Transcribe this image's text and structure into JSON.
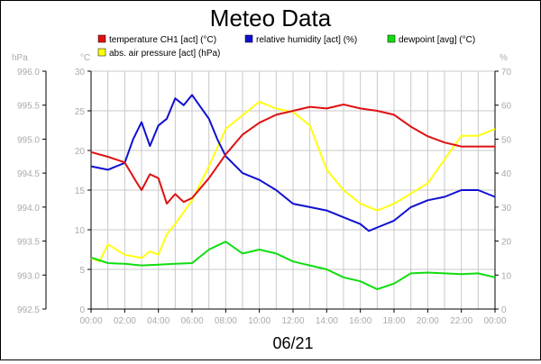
{
  "chart_data": {
    "type": "line",
    "title": "Meteo Data",
    "xlabel": "06/21",
    "x_ticks": [
      "00:00",
      "02:00",
      "04:00",
      "06:00",
      "08:00",
      "10:00",
      "12:00",
      "14:00",
      "16:00",
      "18:00",
      "20:00",
      "22:00",
      "00:00"
    ],
    "x_range_hours": [
      0,
      24
    ],
    "axes": {
      "hpa": {
        "unit": "hPa",
        "range": [
          992.5,
          996.0
        ],
        "ticks": [
          "992.5",
          "993.0",
          "993.5",
          "994.0",
          "994.5",
          "995.0",
          "995.5",
          "996.0"
        ]
      },
      "celsius": {
        "unit": "°C",
        "range": [
          0,
          30
        ],
        "ticks": [
          "0",
          "5",
          "10",
          "15",
          "20",
          "25",
          "30"
        ]
      },
      "percent": {
        "unit": "%",
        "range": [
          0,
          70
        ],
        "ticks": [
          "0",
          "10",
          "20",
          "30",
          "40",
          "50",
          "60",
          "70"
        ]
      }
    },
    "grid": true,
    "legend_position": "top",
    "series": [
      {
        "name": "temperature CH1 [act] (°C)",
        "axis": "celsius",
        "color": "#e01010",
        "x": [
          0,
          1,
          2,
          2.7,
          3,
          3.5,
          4,
          4.5,
          5,
          5.5,
          6,
          7,
          8,
          9,
          10,
          11,
          12,
          13,
          14,
          15,
          16,
          17,
          18,
          19,
          20,
          21,
          22,
          23,
          24
        ],
        "y": [
          19.8,
          19.2,
          18.5,
          16.0,
          15.0,
          17.0,
          16.5,
          13.3,
          14.5,
          13.5,
          14.0,
          16.5,
          19.5,
          22.0,
          23.5,
          24.5,
          25.0,
          25.5,
          25.3,
          25.8,
          25.3,
          25.0,
          24.5,
          23.0,
          21.8,
          21.0,
          20.5,
          20.5,
          20.5
        ]
      },
      {
        "name": "relative humidity [act] (%)",
        "axis": "percent",
        "color": "#1010d0",
        "x": [
          0,
          1,
          2,
          2.5,
          3,
          3.5,
          4,
          4.5,
          5,
          5.5,
          6,
          7,
          7.5,
          8,
          9,
          10,
          11,
          12,
          13,
          14,
          15,
          16,
          16.5,
          17,
          18,
          19,
          20,
          21,
          22,
          23,
          24
        ],
        "y": [
          42,
          41,
          43,
          50,
          55,
          48,
          54,
          56,
          62,
          60,
          63,
          56,
          50,
          45,
          40,
          38,
          35,
          31,
          30,
          29,
          27,
          25,
          23,
          24,
          26,
          30,
          32,
          33,
          35,
          35,
          33
        ]
      },
      {
        "name": "dewpoint [avg] (°C)",
        "axis": "celsius",
        "color": "#10dd10",
        "x": [
          0,
          1,
          2,
          3,
          4,
          5,
          6,
          7,
          8,
          9,
          10,
          11,
          12,
          13,
          14,
          15,
          16,
          17,
          18,
          19,
          20,
          21,
          22,
          23,
          24
        ],
        "y": [
          6.5,
          5.8,
          5.7,
          5.5,
          5.6,
          5.7,
          5.8,
          7.5,
          8.5,
          7.0,
          7.5,
          7.0,
          6.0,
          5.5,
          5.0,
          4.0,
          3.5,
          2.5,
          3.2,
          4.5,
          4.6,
          4.5,
          4.4,
          4.5,
          4.0
        ]
      },
      {
        "name": "abs. air pressure [act] (hPa)",
        "axis": "hpa",
        "color": "#ffff10",
        "x": [
          0,
          0.5,
          1,
          2,
          3,
          3.5,
          4,
          4.5,
          5,
          6,
          7,
          8,
          9,
          10,
          11,
          12,
          13,
          14,
          15,
          16,
          17,
          17.5,
          18,
          19,
          20,
          21,
          22,
          23,
          24
        ],
        "y": [
          993.25,
          993.2,
          993.45,
          993.3,
          993.25,
          993.35,
          993.3,
          993.6,
          993.75,
          994.1,
          994.6,
          995.15,
          995.35,
          995.55,
          995.45,
          995.4,
          995.2,
          994.55,
          994.25,
          994.05,
          993.95,
          994.0,
          994.05,
          994.2,
          994.35,
          994.7,
          995.05,
          995.05,
          995.15
        ]
      }
    ]
  }
}
